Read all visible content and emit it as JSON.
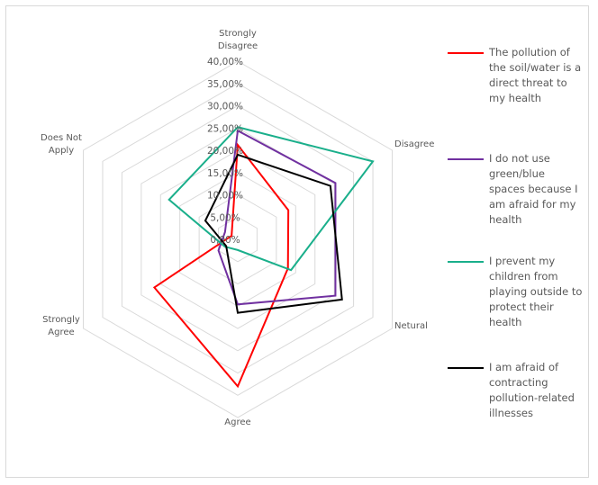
{
  "chart_data": {
    "type": "radar",
    "axes": [
      "Strongly Disagree",
      "Disagree",
      "Netural",
      "Agree",
      "Strongly Agree",
      "Does Not Apply"
    ],
    "axis_label_lines": [
      [
        "Strongly",
        "Disagree"
      ],
      [
        "Disagree"
      ],
      [
        "Netural"
      ],
      [
        "Agree"
      ],
      [
        "Strongly",
        "Agree"
      ],
      [
        "Does Not",
        "Apply"
      ]
    ],
    "rlim": [
      0,
      40
    ],
    "ticks": [
      "0,00%",
      "5,00%",
      "10,00%",
      "15,00%",
      "20,00%",
      "25,00%",
      "30,00%",
      "35,00%",
      "40,00%"
    ],
    "grid": true,
    "legend_position": "right",
    "series": [
      {
        "name": "The pollution of the soil/water is a direct threat to my health",
        "color": "#ff0000",
        "values": [
          21.2,
          13.1,
          13.0,
          33.0,
          21.6,
          1.6
        ]
      },
      {
        "name": "I do not use green/blue spaces because I am afraid for my health",
        "color": "#7030a0",
        "values": [
          24.4,
          25.3,
          25.3,
          14.6,
          5.0,
          3.3
        ]
      },
      {
        "name": "I prevent my children from playing outside to protect their health",
        "color": "#1aaf8b",
        "values": [
          25.2,
          35.0,
          13.8,
          2.4,
          3.3,
          17.8
        ]
      },
      {
        "name": "I am afraid of contracting pollution-related illnesses",
        "color": "#000000",
        "values": [
          19.0,
          24.0,
          27.0,
          16.5,
          3.0,
          8.4
        ]
      }
    ]
  }
}
